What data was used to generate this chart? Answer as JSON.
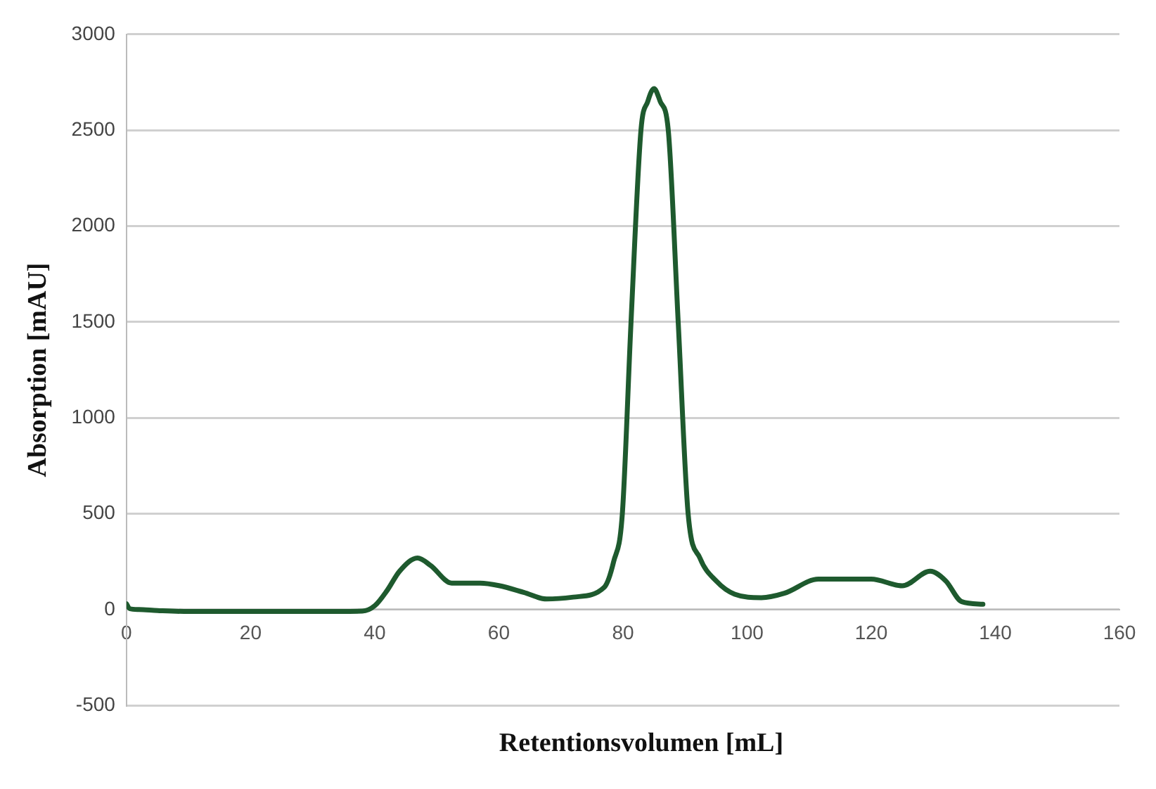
{
  "chart_data": {
    "type": "line",
    "xlabel": "Retentionsvolumen [mL]",
    "ylabel": "Absorption [mAU]",
    "x": [
      0,
      0.5,
      2,
      5,
      10,
      20,
      30,
      38,
      40,
      42,
      44,
      46.9,
      49,
      52.4,
      57,
      60,
      64,
      67.7,
      72,
      77,
      78.5,
      79.9,
      81.3,
      82.9,
      84,
      85,
      86,
      87.3,
      88.9,
      90.5,
      92.4,
      95,
      98,
      102.3,
      106,
      111.5,
      120,
      125,
      129.5,
      132,
      134.6,
      138
    ],
    "series": [
      {
        "color": "#1e5a2e",
        "values": [
          30,
          5,
          0,
          -5,
          -10,
          -10,
          -10,
          -8,
          20,
          100,
          200,
          269,
          230,
          138,
          138,
          125,
          90,
          55,
          65,
          117,
          250,
          500,
          1500,
          2500,
          2650,
          2717,
          2650,
          2500,
          1500,
          500,
          269,
          150,
          80,
          62,
          85,
          159,
          159,
          124,
          200,
          150,
          41,
          28
        ]
      }
    ],
    "xlim": [
      0,
      160
    ],
    "xticks": [
      0,
      20,
      40,
      60,
      80,
      100,
      120,
      140,
      160
    ],
    "ylim": [
      -500,
      3000
    ],
    "yticks": [
      -500,
      0,
      500,
      1000,
      1500,
      2000,
      2500,
      3000
    ],
    "grid": "y",
    "legend": false,
    "marker": "none",
    "line_style": "solid"
  }
}
